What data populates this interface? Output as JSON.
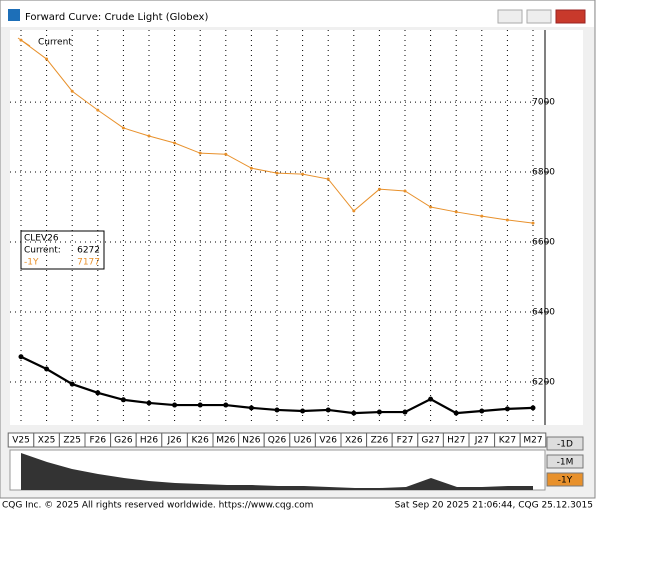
{
  "window_title": "Forward Curve: Crude Light (Globex)",
  "chart_data": {
    "type": "line",
    "categories": [
      "V25",
      "X25",
      "Z25",
      "F26",
      "G26",
      "H26",
      "J26",
      "K26",
      "M26",
      "N26",
      "Q26",
      "U26",
      "V26",
      "X26",
      "Z26",
      "F27",
      "G27",
      "H27",
      "J27",
      "K27",
      "M27"
    ],
    "series": [
      {
        "name": "Current",
        "color": "#000000",
        "values": [
          6272,
          6237,
          6194,
          6169,
          6149,
          6140,
          6134,
          6134,
          6134,
          6126,
          6120,
          6117,
          6120,
          6111,
          6114,
          6114,
          6151,
          6111,
          6117,
          6123,
          6126
        ]
      },
      {
        "name": "-1Y",
        "color": "#e8912c",
        "values": [
          7177,
          7123,
          7031,
          6977,
          6926,
          6903,
          6883,
          6854,
          6851,
          6811,
          6797,
          6794,
          6780,
          6689,
          6751,
          6746,
          6700,
          6686,
          6674,
          6663,
          6654
        ]
      }
    ],
    "ylim": [
      6077,
      7206
    ],
    "yticks": [
      6200,
      6400,
      6600,
      6800,
      7000
    ],
    "grid": true
  },
  "info_box": {
    "symbol": "CLEV26",
    "current_label": "Current:"
  },
  "buttons": [
    "-1D",
    "-1M",
    "-1Y"
  ],
  "footer": {
    "left": "CQG Inc. © 2025 All rights reserved worldwide. https://www.cqg.com",
    "right": "Sat Sep 20 2025 21:06:44, CQG 25.12.3015"
  }
}
